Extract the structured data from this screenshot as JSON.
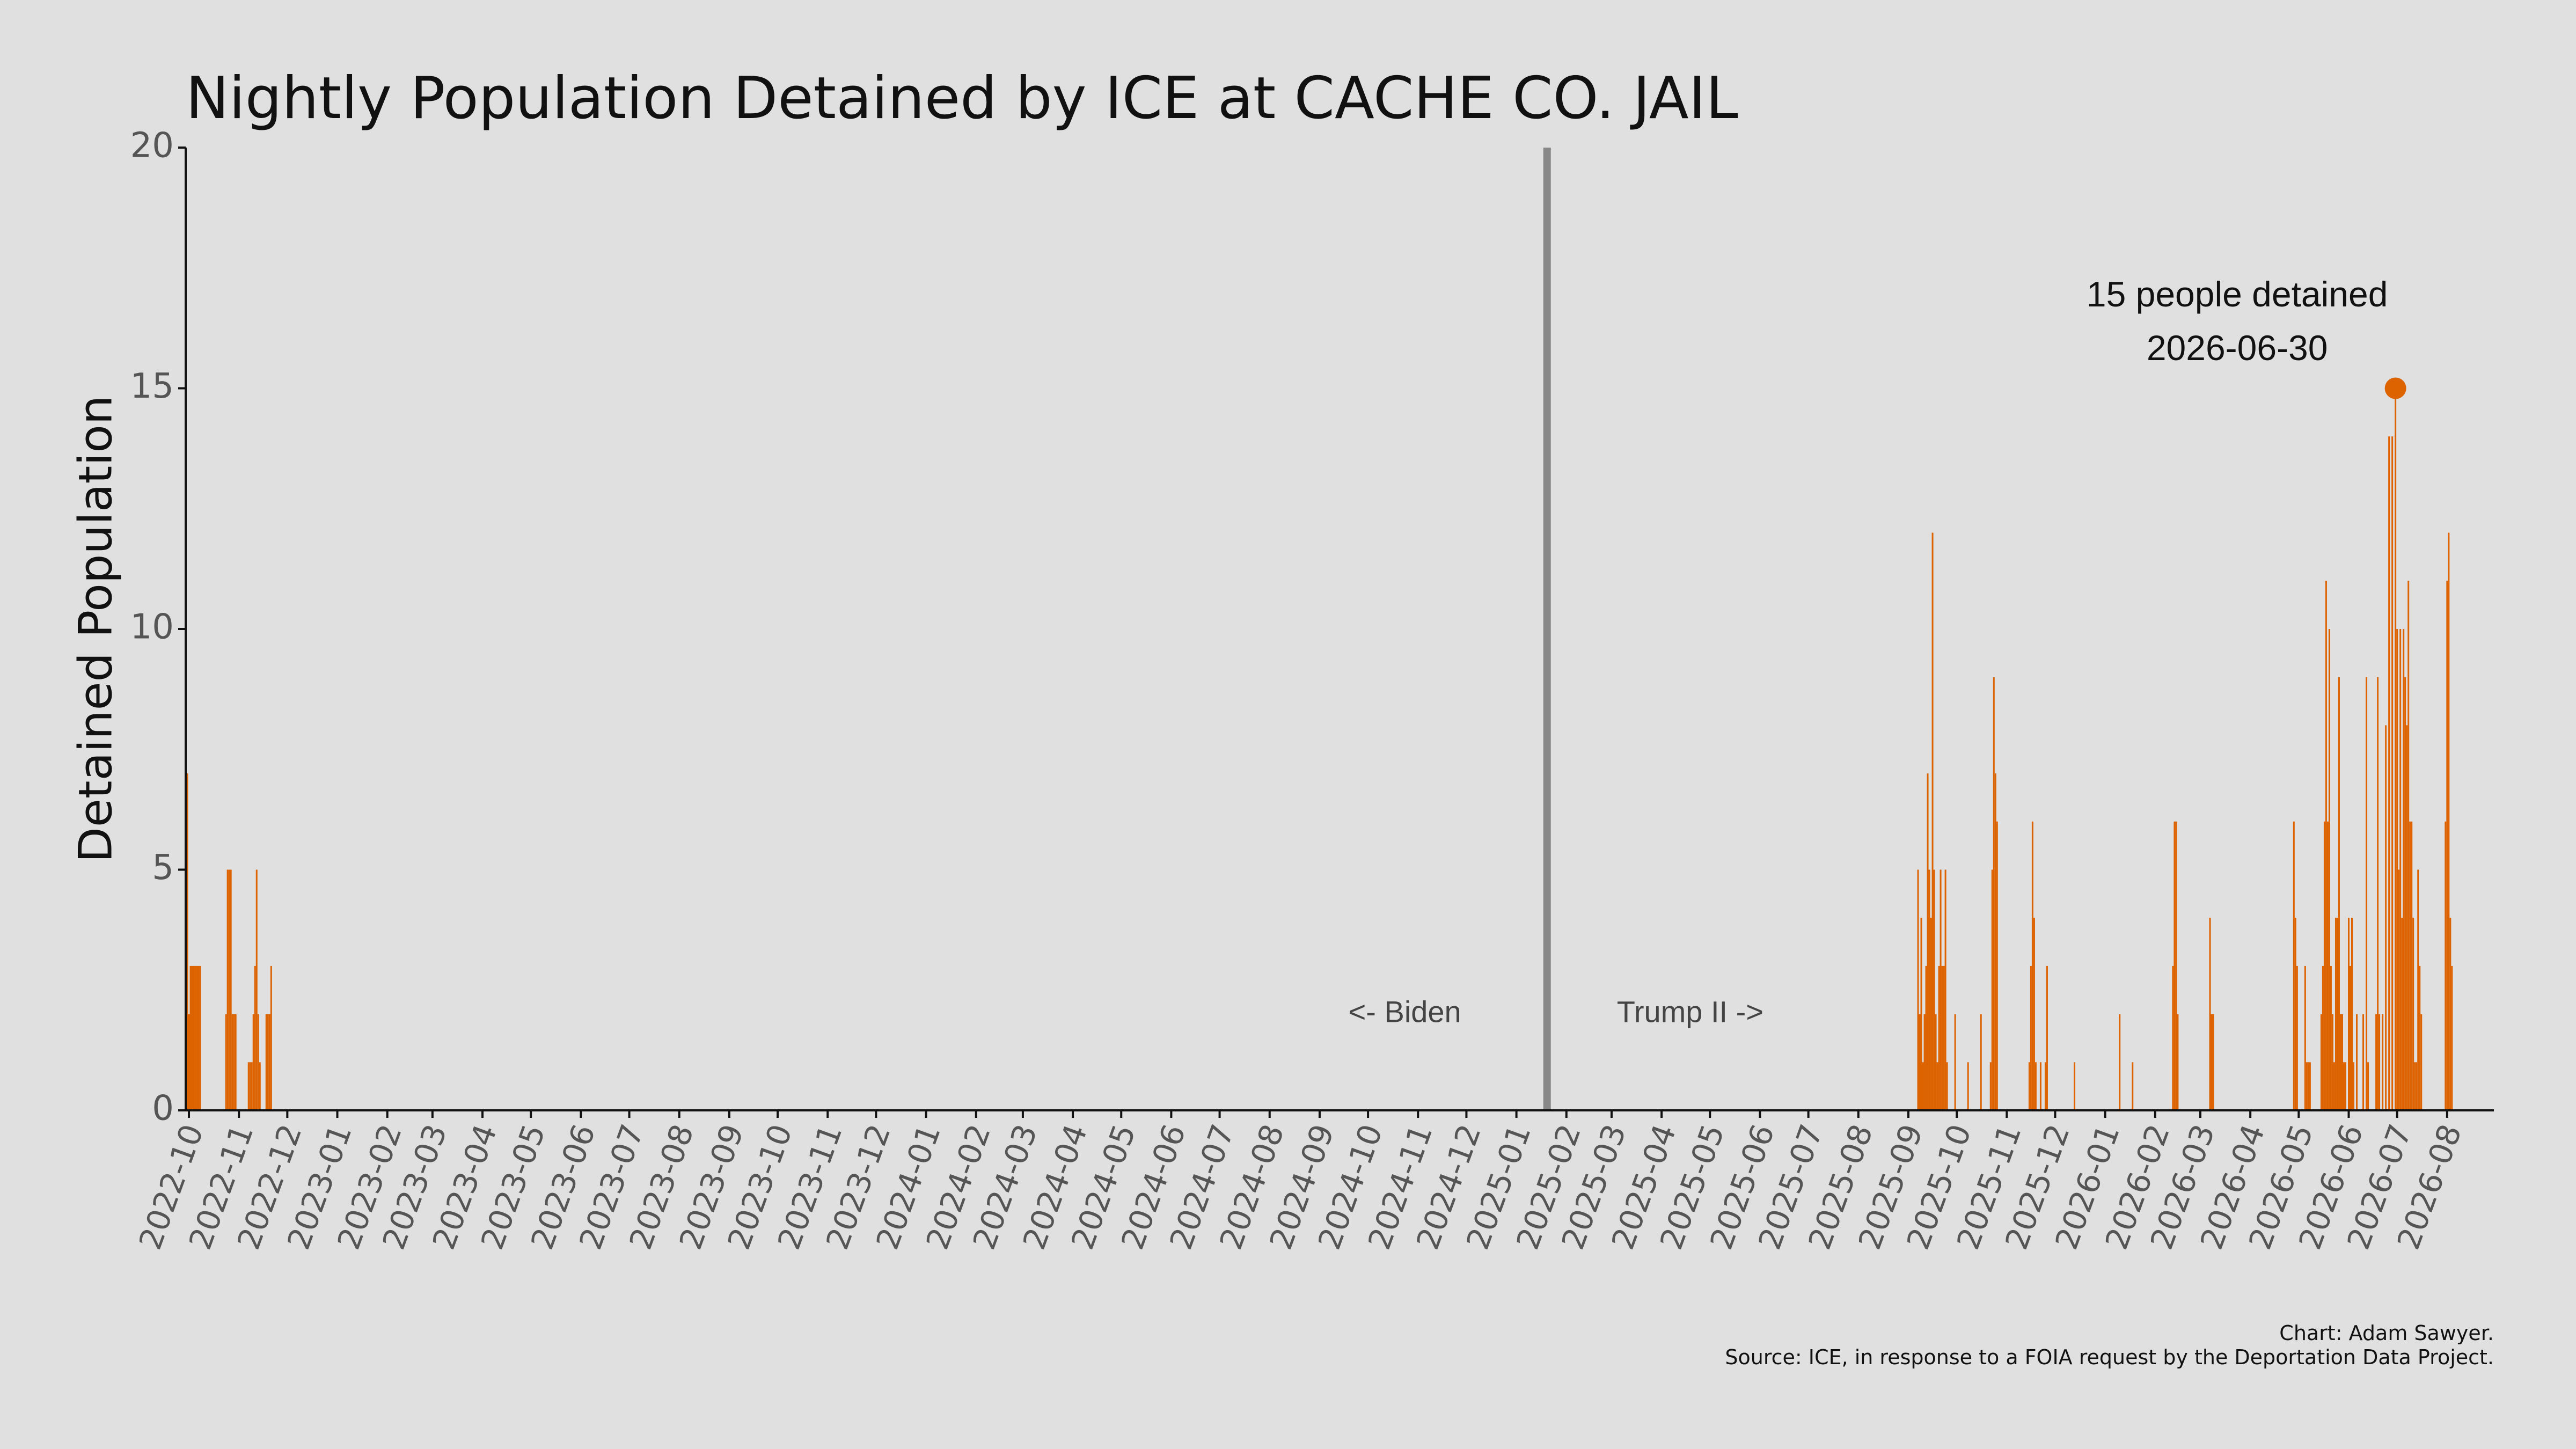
{
  "chart_data": {
    "type": "bar",
    "title": "Nightly Population Detained by ICE at CACHE CO. JAIL",
    "y_label": "Detained Population",
    "color": "#dd6200",
    "ylim": [
      0,
      20
    ],
    "yticks": [
      0,
      5,
      10,
      15,
      20
    ],
    "xlim": [
      "2022-09-29",
      "2026-08-30"
    ],
    "xticks": [
      "2022-10",
      "2022-11",
      "2022-12",
      "2023-01",
      "2023-02",
      "2023-03",
      "2023-04",
      "2023-05",
      "2023-06",
      "2023-07",
      "2023-08",
      "2023-09",
      "2023-10",
      "2023-11",
      "2023-12",
      "2024-01",
      "2024-02",
      "2024-03",
      "2024-04",
      "2024-05",
      "2024-06",
      "2024-07",
      "2024-08",
      "2024-09",
      "2024-10",
      "2024-11",
      "2024-12",
      "2025-01",
      "2025-02",
      "2025-03",
      "2025-04",
      "2025-05",
      "2025-06",
      "2025-07",
      "2025-08",
      "2025-09",
      "2025-10",
      "2025-11",
      "2025-12",
      "2026-01",
      "2026-02",
      "2026-03",
      "2026-04",
      "2026-05",
      "2026-06",
      "2026-07",
      "2026-08"
    ],
    "grid": false,
    "x": [
      "2022-09-30",
      "2022-10-01",
      "2022-10-02",
      "2022-10-03",
      "2022-10-04",
      "2022-10-05",
      "2022-10-06",
      "2022-10-07",
      "2022-10-08",
      "2022-10-24",
      "2022-10-25",
      "2022-10-26",
      "2022-10-27",
      "2022-10-28",
      "2022-10-29",
      "2022-10-30",
      "2022-11-07",
      "2022-11-08",
      "2022-11-09",
      "2022-11-10",
      "2022-11-11",
      "2022-11-12",
      "2022-11-13",
      "2022-11-14",
      "2022-11-18",
      "2022-11-19",
      "2022-11-20",
      "2022-11-21",
      "2025-09-07",
      "2025-09-08",
      "2025-09-09",
      "2025-09-10",
      "2025-09-11",
      "2025-09-12",
      "2025-09-13",
      "2025-09-14",
      "2025-09-15",
      "2025-09-16",
      "2025-09-17",
      "2025-09-18",
      "2025-09-19",
      "2025-09-20",
      "2025-09-21",
      "2025-09-22",
      "2025-09-23",
      "2025-09-24",
      "2025-09-25",
      "2025-09-30",
      "2025-10-08",
      "2025-10-16",
      "2025-10-22",
      "2025-10-23",
      "2025-10-24",
      "2025-10-25",
      "2025-10-26",
      "2025-11-15",
      "2025-11-16",
      "2025-11-17",
      "2025-11-18",
      "2025-11-19",
      "2025-11-22",
      "2025-11-25",
      "2025-11-26",
      "2025-12-13",
      "2026-01-10",
      "2026-01-18",
      "2026-02-12",
      "2026-02-13",
      "2026-02-14",
      "2026-02-15",
      "2026-03-07",
      "2026-03-08",
      "2026-03-09",
      "2026-04-28",
      "2026-04-29",
      "2026-04-30",
      "2026-05-05",
      "2026-05-06",
      "2026-05-07",
      "2026-05-08",
      "2026-05-15",
      "2026-05-16",
      "2026-05-17",
      "2026-05-18",
      "2026-05-19",
      "2026-05-20",
      "2026-05-21",
      "2026-05-22",
      "2026-05-23",
      "2026-05-24",
      "2026-05-25",
      "2026-05-26",
      "2026-05-27",
      "2026-05-28",
      "2026-05-29",
      "2026-05-30",
      "2026-06-01",
      "2026-06-02",
      "2026-06-03",
      "2026-06-04",
      "2026-06-06",
      "2026-06-10",
      "2026-06-12",
      "2026-06-13",
      "2026-06-18",
      "2026-06-19",
      "2026-06-20",
      "2026-06-22",
      "2026-06-24",
      "2026-06-26",
      "2026-06-28",
      "2026-06-30",
      "2026-07-01",
      "2026-07-02",
      "2026-07-03",
      "2026-07-04",
      "2026-07-05",
      "2026-07-06",
      "2026-07-07",
      "2026-07-08",
      "2026-07-09",
      "2026-07-10",
      "2026-07-11",
      "2026-07-12",
      "2026-07-13",
      "2026-07-14",
      "2026-07-15",
      "2026-07-16",
      "2026-07-31",
      "2026-08-01",
      "2026-08-02",
      "2026-08-03",
      "2026-08-04"
    ],
    "values": [
      7,
      2,
      3,
      3,
      3,
      3,
      3,
      3,
      3,
      2,
      5,
      5,
      5,
      2,
      2,
      2,
      1,
      1,
      1,
      2,
      3,
      5,
      2,
      1,
      2,
      2,
      2,
      3,
      5,
      2,
      4,
      1,
      2,
      3,
      7,
      5,
      4,
      12,
      5,
      2,
      1,
      3,
      5,
      3,
      3,
      5,
      1,
      2,
      1,
      2,
      1,
      5,
      9,
      7,
      6,
      1,
      3,
      6,
      4,
      1,
      1,
      1,
      3,
      1,
      2,
      1,
      3,
      6,
      6,
      2,
      4,
      2,
      2,
      6,
      4,
      3,
      3,
      1,
      1,
      1,
      2,
      3,
      6,
      11,
      6,
      10,
      3,
      2,
      1,
      4,
      4,
      9,
      2,
      2,
      1,
      1,
      4,
      3,
      4,
      1,
      2,
      2,
      9,
      1,
      2,
      9,
      2,
      2,
      8,
      14,
      14,
      15,
      10,
      5,
      10,
      4,
      10,
      9,
      8,
      11,
      6,
      6,
      4,
      1,
      1,
      5,
      3,
      2,
      6,
      11,
      12,
      4,
      3
    ],
    "highlight": {
      "x": "2026-06-30",
      "value": 15,
      "label": "15 people detained"
    },
    "divider": {
      "x": "2025-01-20",
      "left_label": "<- Biden",
      "right_label": "Trump II ->"
    },
    "caption": [
      "Chart: Adam Sawyer.",
      "Source: ICE, in response to a FOIA request by the Deportation Data Project."
    ]
  }
}
